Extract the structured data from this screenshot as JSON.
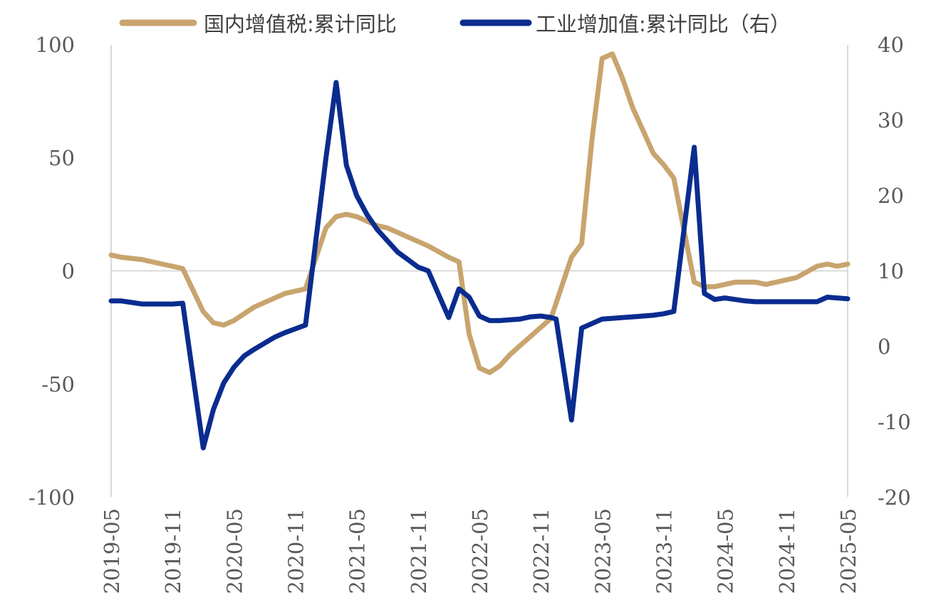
{
  "chart_data": {
    "type": "line",
    "title": "",
    "legend": {
      "placement": "top",
      "entries": [
        "国内增值税:累计同比",
        "工业增加值:累计同比（右）"
      ]
    },
    "x_tick_labels": [
      "2019-05",
      "2019-11",
      "2020-05",
      "2020-11",
      "2021-05",
      "2021-11",
      "2022-05",
      "2022-11",
      "2023-05",
      "2023-11",
      "2024-05",
      "2024-11",
      "2025-05"
    ],
    "y_left": {
      "ylim": [
        -100,
        100
      ],
      "ticks": [
        "-100",
        "-50",
        "0",
        "50",
        "100"
      ]
    },
    "y_right": {
      "ylim": [
        -20,
        40
      ],
      "ticks": [
        "-20",
        "-10",
        "0",
        "10",
        "20",
        "30",
        "40"
      ]
    },
    "grid": false,
    "series": [
      {
        "name": "国内增值税:累计同比",
        "axis": "left",
        "color": "#C8A46E",
        "points": [
          [
            "2019-05",
            7
          ],
          [
            "2019-06",
            6
          ],
          [
            "2019-07",
            5.5
          ],
          [
            "2019-08",
            5
          ],
          [
            "2019-09",
            4
          ],
          [
            "2019-10",
            3
          ],
          [
            "2019-11",
            2
          ],
          [
            "2019-12",
            1
          ],
          [
            "2020-02",
            -18
          ],
          [
            "2020-03",
            -23
          ],
          [
            "2020-04",
            -24
          ],
          [
            "2020-05",
            -22
          ],
          [
            "2020-06",
            -19
          ],
          [
            "2020-07",
            -16
          ],
          [
            "2020-08",
            -14
          ],
          [
            "2020-09",
            -12
          ],
          [
            "2020-10",
            -10
          ],
          [
            "2020-11",
            -9
          ],
          [
            "2020-12",
            -8
          ],
          [
            "2021-02",
            19
          ],
          [
            "2021-03",
            24
          ],
          [
            "2021-04",
            25
          ],
          [
            "2021-05",
            24
          ],
          [
            "2021-06",
            22
          ],
          [
            "2021-07",
            20
          ],
          [
            "2021-08",
            19
          ],
          [
            "2021-09",
            17
          ],
          [
            "2021-10",
            15
          ],
          [
            "2021-11",
            13
          ],
          [
            "2021-12",
            11
          ],
          [
            "2022-02",
            6
          ],
          [
            "2022-03",
            4
          ],
          [
            "2022-04",
            -28
          ],
          [
            "2022-05",
            -43
          ],
          [
            "2022-06",
            -45
          ],
          [
            "2022-07",
            -42
          ],
          [
            "2022-08",
            -37
          ],
          [
            "2022-09",
            -33
          ],
          [
            "2022-10",
            -29
          ],
          [
            "2022-11",
            -25
          ],
          [
            "2022-12",
            -21
          ],
          [
            "2023-02",
            6
          ],
          [
            "2023-03",
            12
          ],
          [
            "2023-04",
            58
          ],
          [
            "2023-05",
            94
          ],
          [
            "2023-06",
            96
          ],
          [
            "2023-07",
            85
          ],
          [
            "2023-08",
            72
          ],
          [
            "2023-09",
            62
          ],
          [
            "2023-10",
            52
          ],
          [
            "2023-11",
            47
          ],
          [
            "2023-12",
            41
          ],
          [
            "2024-02",
            -5
          ],
          [
            "2024-03",
            -7
          ],
          [
            "2024-04",
            -7
          ],
          [
            "2024-05",
            -6
          ],
          [
            "2024-06",
            -5
          ],
          [
            "2024-07",
            -5
          ],
          [
            "2024-08",
            -5
          ],
          [
            "2024-09",
            -6
          ],
          [
            "2024-10",
            -5
          ],
          [
            "2024-11",
            -4
          ],
          [
            "2024-12",
            -3
          ],
          [
            "2025-02",
            2
          ],
          [
            "2025-03",
            3
          ],
          [
            "2025-04",
            2
          ],
          [
            "2025-05",
            3
          ]
        ]
      },
      {
        "name": "工业增加值:累计同比（右）",
        "axis": "right",
        "color": "#0A2C8F",
        "points": [
          [
            "2019-05",
            6
          ],
          [
            "2019-06",
            6
          ],
          [
            "2019-07",
            5.8
          ],
          [
            "2019-08",
            5.6
          ],
          [
            "2019-09",
            5.6
          ],
          [
            "2019-10",
            5.6
          ],
          [
            "2019-11",
            5.6
          ],
          [
            "2019-12",
            5.7
          ],
          [
            "2020-02",
            -13.5
          ],
          [
            "2020-03",
            -8.4
          ],
          [
            "2020-04",
            -4.9
          ],
          [
            "2020-05",
            -2.8
          ],
          [
            "2020-06",
            -1.3
          ],
          [
            "2020-07",
            -0.4
          ],
          [
            "2020-08",
            0.4
          ],
          [
            "2020-09",
            1.2
          ],
          [
            "2020-10",
            1.8
          ],
          [
            "2020-11",
            2.3
          ],
          [
            "2020-12",
            2.8
          ],
          [
            "2021-02",
            25
          ],
          [
            "2021-03",
            35
          ],
          [
            "2021-04",
            24
          ],
          [
            "2021-05",
            20
          ],
          [
            "2021-06",
            17.5
          ],
          [
            "2021-07",
            15.5
          ],
          [
            "2021-08",
            14
          ],
          [
            "2021-09",
            12.5
          ],
          [
            "2021-10",
            11.5
          ],
          [
            "2021-11",
            10.5
          ],
          [
            "2021-12",
            10
          ],
          [
            "2022-02",
            3.8
          ],
          [
            "2022-03",
            7.6
          ],
          [
            "2022-04",
            6.5
          ],
          [
            "2022-05",
            4
          ],
          [
            "2022-06",
            3.4
          ],
          [
            "2022-07",
            3.4
          ],
          [
            "2022-08",
            3.5
          ],
          [
            "2022-09",
            3.6
          ],
          [
            "2022-10",
            3.9
          ],
          [
            "2022-11",
            4
          ],
          [
            "2022-12",
            3.8
          ],
          [
            "2022-12b",
            3.6
          ],
          [
            "2023-02",
            -9.8
          ],
          [
            "2023-03",
            2.4
          ],
          [
            "2023-04",
            3
          ],
          [
            "2023-05",
            3.6
          ],
          [
            "2023-06",
            3.7
          ],
          [
            "2023-07",
            3.8
          ],
          [
            "2023-08",
            3.9
          ],
          [
            "2023-09",
            4
          ],
          [
            "2023-10",
            4.1
          ],
          [
            "2023-11",
            4.3
          ],
          [
            "2023-12",
            4.6
          ],
          [
            "2024-02",
            26.4
          ],
          [
            "2024-03",
            7
          ],
          [
            "2024-04",
            6.2
          ],
          [
            "2024-05",
            6.4
          ],
          [
            "2024-06",
            6.2
          ],
          [
            "2024-07",
            6
          ],
          [
            "2024-08",
            5.9
          ],
          [
            "2024-09",
            5.9
          ],
          [
            "2024-10",
            5.9
          ],
          [
            "2024-11",
            5.9
          ],
          [
            "2024-12",
            5.9
          ],
          [
            "2025-02",
            5.9
          ],
          [
            "2025-03",
            6.5
          ],
          [
            "2025-04",
            6.4
          ],
          [
            "2025-05",
            6.3
          ]
        ]
      }
    ]
  }
}
